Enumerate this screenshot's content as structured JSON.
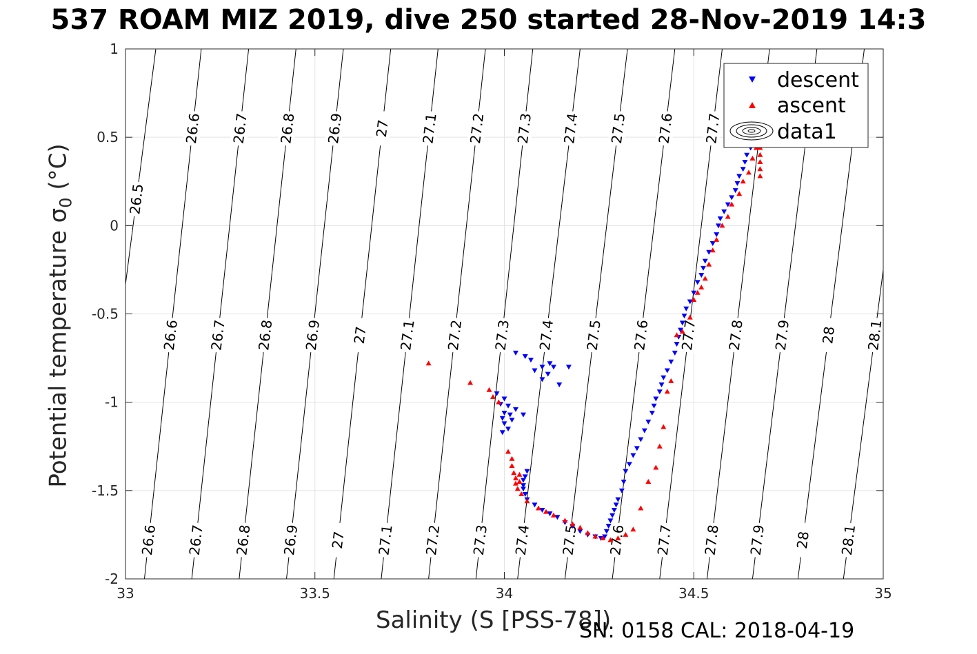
{
  "title": "537 ROAM MIZ 2019, dive 250 started 28-Nov-2019 14:3",
  "xlabel": "Salinity (S [PSS-78])",
  "ylabel": {
    "main": "Potential temperature ",
    "symbol": "σ",
    "sub": "0",
    "unit": " (°C)"
  },
  "footer": "SN: 0158  CAL: 2018-04-19",
  "legend": [
    {
      "label": "descent",
      "marker": "triangle-down",
      "color": "#0000ff"
    },
    {
      "label": "ascent",
      "marker": "triangle-up",
      "color": "#ff0000"
    },
    {
      "label": "data1",
      "marker": "contour-ellipses",
      "color": "#000000"
    }
  ],
  "chart_data": {
    "type": "scatter",
    "xlim": [
      33,
      35
    ],
    "ylim": [
      -2,
      1
    ],
    "xticks": [
      33,
      33.5,
      34,
      34.5,
      35
    ],
    "yticks": [
      -2,
      -1.5,
      -1,
      -0.5,
      0,
      0.5,
      1
    ],
    "xtick_labels": [
      "33",
      "33.5",
      "34",
      "34.5",
      "35"
    ],
    "ytick_labels": [
      "-2",
      "-1.5",
      "-1",
      "-0.5",
      "0",
      "0.5",
      "1"
    ],
    "grid": true,
    "legend_position": "top-right",
    "density_contours": {
      "name": "data1",
      "levels": [
        26.5,
        26.6,
        26.7,
        26.8,
        26.9,
        27,
        27.1,
        27.2,
        27.3,
        27.4,
        27.5,
        27.6,
        27.7,
        27.8,
        27.9,
        28,
        28.1
      ],
      "lines": [
        {
          "level": 26.5,
          "x_at_ylim_bottom": 32.9,
          "x_at_ylim_top": 33.08
        },
        {
          "level": 26.6,
          "x_at_ylim_bottom": 33.05,
          "x_at_ylim_top": 33.2
        },
        {
          "level": 26.7,
          "x_at_ylim_bottom": 33.175,
          "x_at_ylim_top": 33.325
        },
        {
          "level": 26.8,
          "x_at_ylim_bottom": 33.3,
          "x_at_ylim_top": 33.45
        },
        {
          "level": 26.9,
          "x_at_ylim_bottom": 33.425,
          "x_at_ylim_top": 33.575
        },
        {
          "level": 27,
          "x_at_ylim_bottom": 33.55,
          "x_at_ylim_top": 33.7
        },
        {
          "level": 27.1,
          "x_at_ylim_bottom": 33.675,
          "x_at_ylim_top": 33.825
        },
        {
          "level": 27.2,
          "x_at_ylim_bottom": 33.8,
          "x_at_ylim_top": 33.95
        },
        {
          "level": 27.3,
          "x_at_ylim_bottom": 33.925,
          "x_at_ylim_top": 34.075
        },
        {
          "level": 27.4,
          "x_at_ylim_bottom": 34.035,
          "x_at_ylim_top": 34.2
        },
        {
          "level": 27.5,
          "x_at_ylim_bottom": 34.16,
          "x_at_ylim_top": 34.325
        },
        {
          "level": 27.6,
          "x_at_ylim_bottom": 34.285,
          "x_at_ylim_top": 34.45
        },
        {
          "level": 27.7,
          "x_at_ylim_bottom": 34.41,
          "x_at_ylim_top": 34.575
        },
        {
          "level": 27.8,
          "x_at_ylim_bottom": 34.535,
          "x_at_ylim_top": 34.7
        },
        {
          "level": 27.9,
          "x_at_ylim_bottom": 34.655,
          "x_at_ylim_top": 34.825
        },
        {
          "level": 28,
          "x_at_ylim_bottom": 34.775,
          "x_at_ylim_top": 34.95
        },
        {
          "level": 28.1,
          "x_at_ylim_bottom": 34.895,
          "x_at_ylim_top": 35.075
        }
      ],
      "label_rows": [
        {
          "y": 0.55,
          "levels": [
            "26.6",
            "26.7",
            "26.8",
            "26.9",
            "27",
            "27.1",
            "27.2",
            "27.3",
            "27.4",
            "27.5",
            "27.6",
            "27.7"
          ]
        },
        {
          "y": -0.62,
          "levels": [
            "26.6",
            "26.7",
            "26.8",
            "26.9",
            "27",
            "27.1",
            "27.2",
            "27.3",
            "27.4",
            "27.5",
            "27.6",
            "27.7",
            "27.8",
            "27.9",
            "28",
            "28.1"
          ]
        },
        {
          "y": -1.78,
          "levels": [
            "26.6",
            "26.7",
            "26.8",
            "26.9",
            "27",
            "27.1",
            "27.2",
            "27.3",
            "27.4",
            "27.5",
            "27.6",
            "27.7",
            "27.8",
            "27.9",
            "28",
            "28.1"
          ]
        },
        {
          "y": 0.15,
          "levels": [
            "26.5"
          ]
        }
      ]
    },
    "series": [
      {
        "name": "descent",
        "marker": "triangle-down",
        "color": "#0000ff",
        "points": [
          [
            34.03,
            -0.72
          ],
          [
            34.055,
            -0.74
          ],
          [
            34.07,
            -0.76
          ],
          [
            34.12,
            -0.78
          ],
          [
            34.1,
            -0.8
          ],
          [
            34.13,
            -0.8
          ],
          [
            34.17,
            -0.8
          ],
          [
            34.08,
            -0.82
          ],
          [
            34.115,
            -0.84
          ],
          [
            34.1,
            -0.87
          ],
          [
            34.145,
            -0.9
          ],
          [
            33.98,
            -0.95
          ],
          [
            34.0,
            -0.98
          ],
          [
            33.99,
            -1.01
          ],
          [
            34.01,
            -1.02
          ],
          [
            34.03,
            -1.04
          ],
          [
            34.0,
            -1.06
          ],
          [
            34.015,
            -1.07
          ],
          [
            34.05,
            -1.07
          ],
          [
            33.995,
            -1.09
          ],
          [
            34.02,
            -1.1
          ],
          [
            34.0,
            -1.12
          ],
          [
            34.01,
            -1.15
          ],
          [
            33.995,
            -1.17
          ],
          [
            34.06,
            -1.39
          ],
          [
            34.055,
            -1.42
          ],
          [
            34.05,
            -1.44
          ],
          [
            34.05,
            -1.47
          ],
          [
            34.05,
            -1.49
          ],
          [
            34.055,
            -1.52
          ],
          [
            34.06,
            -1.55
          ],
          [
            34.08,
            -1.58
          ],
          [
            34.1,
            -1.61
          ],
          [
            34.12,
            -1.63
          ],
          [
            34.14,
            -1.65
          ],
          [
            34.16,
            -1.68
          ],
          [
            34.18,
            -1.7
          ],
          [
            34.2,
            -1.73
          ],
          [
            34.22,
            -1.75
          ],
          [
            34.24,
            -1.76
          ],
          [
            34.255,
            -1.77
          ],
          [
            34.265,
            -1.76
          ],
          [
            34.27,
            -1.73
          ],
          [
            34.275,
            -1.7
          ],
          [
            34.28,
            -1.67
          ],
          [
            34.285,
            -1.64
          ],
          [
            34.29,
            -1.61
          ],
          [
            34.295,
            -1.58
          ],
          [
            34.3,
            -1.55
          ],
          [
            34.31,
            -1.5
          ],
          [
            34.315,
            -1.45
          ],
          [
            34.32,
            -1.39
          ],
          [
            34.33,
            -1.35
          ],
          [
            34.34,
            -1.3
          ],
          [
            34.35,
            -1.26
          ],
          [
            34.36,
            -1.21
          ],
          [
            34.37,
            -1.16
          ],
          [
            34.38,
            -1.11
          ],
          [
            34.39,
            -1.06
          ],
          [
            34.395,
            -1.02
          ],
          [
            34.4,
            -0.98
          ],
          [
            34.41,
            -0.94
          ],
          [
            34.415,
            -0.9
          ],
          [
            34.42,
            -0.86
          ],
          [
            34.43,
            -0.82
          ],
          [
            34.44,
            -0.77
          ],
          [
            34.45,
            -0.72
          ],
          [
            34.455,
            -0.67
          ],
          [
            34.46,
            -0.63
          ],
          [
            34.465,
            -0.59
          ],
          [
            34.47,
            -0.55
          ],
          [
            34.475,
            -0.51
          ],
          [
            34.48,
            -0.47
          ],
          [
            34.49,
            -0.43
          ],
          [
            34.5,
            -0.38
          ],
          [
            34.51,
            -0.32
          ],
          [
            34.52,
            -0.28
          ],
          [
            34.525,
            -0.24
          ],
          [
            34.53,
            -0.2
          ],
          [
            34.54,
            -0.15
          ],
          [
            34.55,
            -0.1
          ],
          [
            34.56,
            -0.05
          ],
          [
            34.565,
            0.0
          ],
          [
            34.57,
            0.04
          ],
          [
            34.58,
            0.08
          ],
          [
            34.59,
            0.12
          ],
          [
            34.6,
            0.16
          ],
          [
            34.61,
            0.2
          ],
          [
            34.615,
            0.24
          ],
          [
            34.62,
            0.28
          ],
          [
            34.63,
            0.32
          ],
          [
            34.635,
            0.36
          ],
          [
            34.64,
            0.4
          ],
          [
            34.65,
            0.44
          ],
          [
            34.66,
            0.48
          ]
        ]
      },
      {
        "name": "ascent",
        "marker": "triangle-up",
        "color": "#ff0000",
        "points": [
          [
            33.8,
            -0.78
          ],
          [
            33.91,
            -0.89
          ],
          [
            33.96,
            -0.93
          ],
          [
            33.97,
            -0.97
          ],
          [
            33.985,
            -1.0
          ],
          [
            34.01,
            -1.28
          ],
          [
            34.02,
            -1.32
          ],
          [
            34.02,
            -1.36
          ],
          [
            34.025,
            -1.4
          ],
          [
            34.03,
            -1.43
          ],
          [
            34.03,
            -1.46
          ],
          [
            34.035,
            -1.49
          ],
          [
            34.04,
            -1.41
          ],
          [
            34.045,
            -1.52
          ],
          [
            34.04,
            -1.45
          ],
          [
            34.06,
            -1.56
          ],
          [
            34.09,
            -1.6
          ],
          [
            34.11,
            -1.62
          ],
          [
            34.13,
            -1.64
          ],
          [
            34.16,
            -1.67
          ],
          [
            34.18,
            -1.69
          ],
          [
            34.2,
            -1.71
          ],
          [
            34.22,
            -1.74
          ],
          [
            34.24,
            -1.76
          ],
          [
            34.26,
            -1.77
          ],
          [
            34.28,
            -1.78
          ],
          [
            34.3,
            -1.77
          ],
          [
            34.32,
            -1.75
          ],
          [
            34.34,
            -1.72
          ],
          [
            34.36,
            -1.6
          ],
          [
            34.38,
            -1.45
          ],
          [
            34.4,
            -1.37
          ],
          [
            34.41,
            -1.25
          ],
          [
            34.42,
            -1.14
          ],
          [
            34.43,
            -0.94
          ],
          [
            34.44,
            -0.88
          ],
          [
            34.455,
            -0.62
          ],
          [
            34.47,
            -0.6
          ],
          [
            34.49,
            -0.52
          ],
          [
            34.5,
            -0.42
          ],
          [
            34.51,
            -0.38
          ],
          [
            34.52,
            -0.35
          ],
          [
            34.53,
            -0.3
          ],
          [
            34.54,
            -0.22
          ],
          [
            34.55,
            -0.14
          ],
          [
            34.56,
            -0.08
          ],
          [
            34.575,
            0.0
          ],
          [
            34.59,
            0.05
          ],
          [
            34.6,
            0.12
          ],
          [
            34.62,
            0.18
          ],
          [
            34.63,
            0.25
          ],
          [
            34.645,
            0.3
          ],
          [
            34.655,
            0.38
          ],
          [
            34.665,
            0.44
          ],
          [
            34.675,
            0.47
          ],
          [
            34.675,
            0.28
          ],
          [
            34.675,
            0.32
          ],
          [
            34.675,
            0.36
          ],
          [
            34.675,
            0.4
          ],
          [
            34.675,
            0.44
          ],
          [
            34.675,
            0.48
          ]
        ]
      }
    ]
  }
}
